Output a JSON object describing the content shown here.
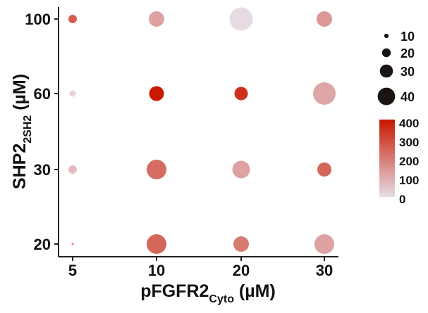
{
  "chart_data": {
    "type": "scatter",
    "subtype": "bubble-grid",
    "x_title": {
      "main": "pFGFR2",
      "sub": "Cyto",
      "unit": " (µM)"
    },
    "y_title": {
      "main": "SHP2",
      "sub": "2SH2",
      "unit": " (µM)"
    },
    "x_categories": [
      "5",
      "10",
      "20",
      "30"
    ],
    "y_categories": [
      "20",
      "30",
      "60",
      "100"
    ],
    "grid": false,
    "legend_position": "right",
    "size_legend": {
      "values": [
        10,
        20,
        30,
        40
      ],
      "labels": [
        "10",
        "20",
        "30",
        "40"
      ]
    },
    "color_legend": {
      "min": 0,
      "max": 400,
      "ticks": [
        0,
        100,
        200,
        300,
        400
      ],
      "tick_labels": [
        "0",
        "100",
        "200",
        "300",
        "400"
      ],
      "low_color": "#e6dde6",
      "high_color": "#c81800"
    },
    "points": [
      {
        "x": "5",
        "y": "100",
        "size": 12,
        "color_value": 260
      },
      {
        "x": "10",
        "y": "100",
        "size": 22,
        "color_value": 120
      },
      {
        "x": "20",
        "y": "100",
        "size": 33,
        "color_value": 5
      },
      {
        "x": "30",
        "y": "100",
        "size": 22,
        "color_value": 140
      },
      {
        "x": "5",
        "y": "60",
        "size": 9,
        "color_value": 25
      },
      {
        "x": "10",
        "y": "60",
        "size": 21,
        "color_value": 400
      },
      {
        "x": "20",
        "y": "60",
        "size": 19,
        "color_value": 350
      },
      {
        "x": "30",
        "y": "60",
        "size": 32,
        "color_value": 110
      },
      {
        "x": "5",
        "y": "30",
        "size": 12,
        "color_value": 65
      },
      {
        "x": "10",
        "y": "30",
        "size": 28,
        "color_value": 230
      },
      {
        "x": "20",
        "y": "30",
        "size": 25,
        "color_value": 120
      },
      {
        "x": "30",
        "y": "30",
        "size": 20,
        "color_value": 240
      },
      {
        "x": "5",
        "y": "20",
        "size": 3,
        "color_value": 200
      },
      {
        "x": "10",
        "y": "20",
        "size": 28,
        "color_value": 240
      },
      {
        "x": "20",
        "y": "20",
        "size": 22,
        "color_value": 200
      },
      {
        "x": "30",
        "y": "20",
        "size": 28,
        "color_value": 120
      }
    ]
  }
}
